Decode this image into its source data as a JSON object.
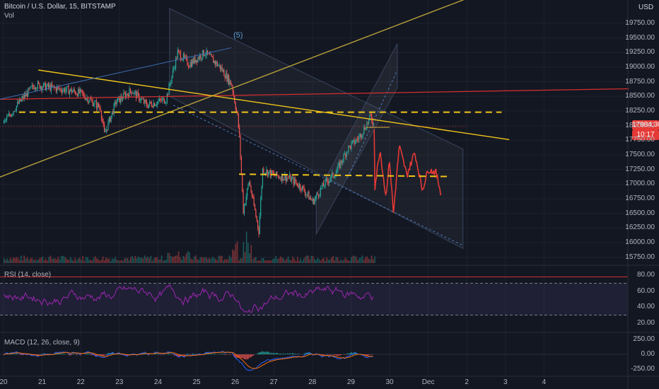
{
  "chart_data": {
    "type": "line",
    "title": "Bitcoin / U.S. Dollar, 15, BITSTAMP",
    "volume_label": "Vol",
    "currency": "USD",
    "price_axis_ticks": [
      19750,
      19500,
      19250,
      19000,
      18750,
      18500,
      18250,
      18000,
      17750,
      17500,
      17250,
      17000,
      16750,
      16500,
      16250,
      16000,
      15750
    ],
    "price_axis_tick_labels": [
      "19750.00",
      "19500.00",
      "19250.00",
      "19000.00",
      "18750.00",
      "18500.00",
      "18250.00",
      "18000.00",
      "17750.00",
      "17500.00",
      "17250.00",
      "17000.00",
      "16750.00",
      "16500.00",
      "16250.00",
      "16000.00",
      "15750.00"
    ],
    "x_tick_labels": [
      "20",
      "21",
      "22",
      "23",
      "24",
      "25",
      "26",
      "27",
      "28",
      "29",
      "30",
      "Dec",
      "2",
      "3",
      "4"
    ],
    "price_ylim": [
      15650,
      20050
    ],
    "last_price": "17984.30",
    "countdown": "10:17",
    "annotation_wave": "(5)",
    "price_path": [
      {
        "day": 20.0,
        "price": 18050
      },
      {
        "day": 20.4,
        "price": 18400
      },
      {
        "day": 20.8,
        "price": 18700
      },
      {
        "day": 21.2,
        "price": 18650
      },
      {
        "day": 21.7,
        "price": 18600
      },
      {
        "day": 22.0,
        "price": 18550
      },
      {
        "day": 22.5,
        "price": 18300
      },
      {
        "day": 22.6,
        "price": 17850
      },
      {
        "day": 22.9,
        "price": 18400
      },
      {
        "day": 23.3,
        "price": 18600
      },
      {
        "day": 23.7,
        "price": 18350
      },
      {
        "day": 24.2,
        "price": 18450
      },
      {
        "day": 24.5,
        "price": 19250
      },
      {
        "day": 24.8,
        "price": 19050
      },
      {
        "day": 25.2,
        "price": 19250
      },
      {
        "day": 25.6,
        "price": 19000
      },
      {
        "day": 25.9,
        "price": 18700
      },
      {
        "day": 26.05,
        "price": 18150
      },
      {
        "day": 26.1,
        "price": 17800
      },
      {
        "day": 26.2,
        "price": 16550
      },
      {
        "day": 26.35,
        "price": 17050
      },
      {
        "day": 26.6,
        "price": 16200
      },
      {
        "day": 26.7,
        "price": 17250
      },
      {
        "day": 27.0,
        "price": 17150
      },
      {
        "day": 27.4,
        "price": 17100
      },
      {
        "day": 27.7,
        "price": 16950
      },
      {
        "day": 28.0,
        "price": 16700
      },
      {
        "day": 28.3,
        "price": 17000
      },
      {
        "day": 28.6,
        "price": 17200
      },
      {
        "day": 28.9,
        "price": 17600
      },
      {
        "day": 29.2,
        "price": 17800
      },
      {
        "day": 29.5,
        "price": 18150
      },
      {
        "day": 29.6,
        "price": 17984
      }
    ],
    "projection_path": [
      {
        "day": 29.6,
        "price": 17984
      },
      {
        "day": 29.62,
        "price": 16950
      },
      {
        "day": 29.75,
        "price": 17600
      },
      {
        "day": 29.9,
        "price": 16800
      },
      {
        "day": 30.0,
        "price": 17400
      },
      {
        "day": 30.1,
        "price": 16500
      },
      {
        "day": 30.25,
        "price": 17650
      },
      {
        "day": 30.45,
        "price": 17150
      },
      {
        "day": 30.65,
        "price": 17550
      },
      {
        "day": 30.85,
        "price": 16900
      },
      {
        "day": 31.0,
        "price": 17250
      },
      {
        "day": 31.2,
        "price": 17200
      },
      {
        "day": 31.35,
        "price": 16800
      }
    ],
    "rsi": {
      "label": "RSI (14, close)",
      "ticks": [
        "80.00",
        "60.00",
        "40.00",
        "20.00"
      ],
      "tick_values": [
        80,
        60,
        40,
        20
      ],
      "upper_band": 70,
      "lower_band": 30,
      "ylim": [
        10,
        90
      ]
    },
    "macd": {
      "label": "MACD (12, 26, close, 9)",
      "ticks": [
        "250.00",
        "0.00",
        "-250.00"
      ],
      "tick_values": [
        250,
        0,
        -250
      ],
      "ylim": [
        -350,
        350
      ]
    },
    "colors": {
      "background": "#131722",
      "candle_up": "#26a69a",
      "candle_down": "#ef5350",
      "projection": "#e53935",
      "rsi_line": "#9c27b0",
      "trend_yellow": "#f0c419",
      "trend_olive": "#b8a03a",
      "resistance_red": "#d32f2f",
      "channel_line": "#4c6a91",
      "last_price_tag": "#e53935"
    }
  }
}
